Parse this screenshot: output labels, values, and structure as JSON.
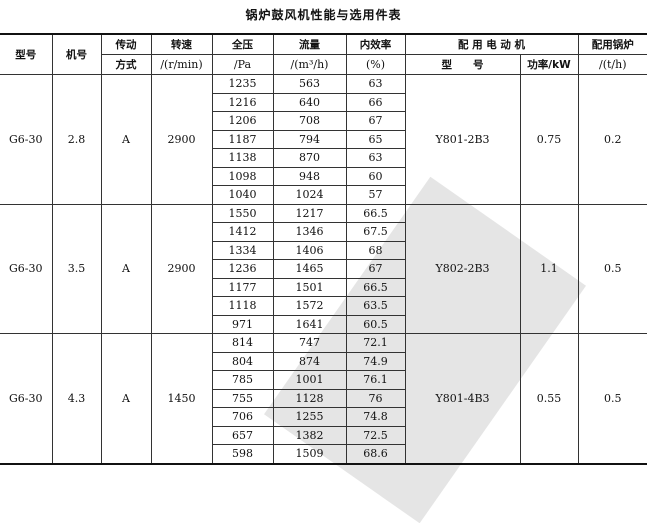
{
  "title": "锅炉鼓风机性能与选用件表",
  "headers": {
    "model": "型号",
    "number": "机号",
    "drive_1": "传动",
    "drive_2": "方式",
    "speed_1": "转速",
    "speed_2": "/(r/min)",
    "pressure_1": "全压",
    "pressure_2": "/Pa",
    "flow_1": "流量",
    "flow_2": "/(m³/h)",
    "eff_1": "内效率",
    "eff_2": "(%)",
    "motor": "配 用 电 动 机",
    "motor_model": "型　　号",
    "motor_power": "功率/kW",
    "boiler_1": "配用锅炉",
    "boiler_2": "/(t/h)"
  },
  "groups": [
    {
      "model": "G6-30",
      "number": "2.8",
      "drive": "A",
      "speed": "2900",
      "motor_model": "Y801-2B3",
      "power": "0.75",
      "boiler": "0.2",
      "rows": [
        [
          "1235",
          "563",
          "63"
        ],
        [
          "1216",
          "640",
          "66"
        ],
        [
          "1206",
          "708",
          "67"
        ],
        [
          "1187",
          "794",
          "65"
        ],
        [
          "1138",
          "870",
          "63"
        ],
        [
          "1098",
          "948",
          "60"
        ],
        [
          "1040",
          "1024",
          "57"
        ]
      ]
    },
    {
      "model": "G6-30",
      "number": "3.5",
      "drive": "A",
      "speed": "2900",
      "motor_model": "Y802-2B3",
      "power": "1.1",
      "boiler": "0.5",
      "rows": [
        [
          "1550",
          "1217",
          "66.5"
        ],
        [
          "1412",
          "1346",
          "67.5"
        ],
        [
          "1334",
          "1406",
          "68"
        ],
        [
          "1236",
          "1465",
          "67"
        ],
        [
          "1177",
          "1501",
          "66.5"
        ],
        [
          "1118",
          "1572",
          "63.5"
        ],
        [
          "971",
          "1641",
          "60.5"
        ]
      ]
    },
    {
      "model": "G6-30",
      "number": "4.3",
      "drive": "A",
      "speed": "1450",
      "motor_model": "Y801-4B3",
      "power": "0.55",
      "boiler": "0.5",
      "rows": [
        [
          "814",
          "747",
          "72.1"
        ],
        [
          "804",
          "874",
          "74.9"
        ],
        [
          "785",
          "1001",
          "76.1"
        ],
        [
          "755",
          "1128",
          "76"
        ],
        [
          "706",
          "1255",
          "74.8"
        ],
        [
          "657",
          "1382",
          "72.5"
        ],
        [
          "598",
          "1509",
          "68.6"
        ]
      ]
    }
  ]
}
